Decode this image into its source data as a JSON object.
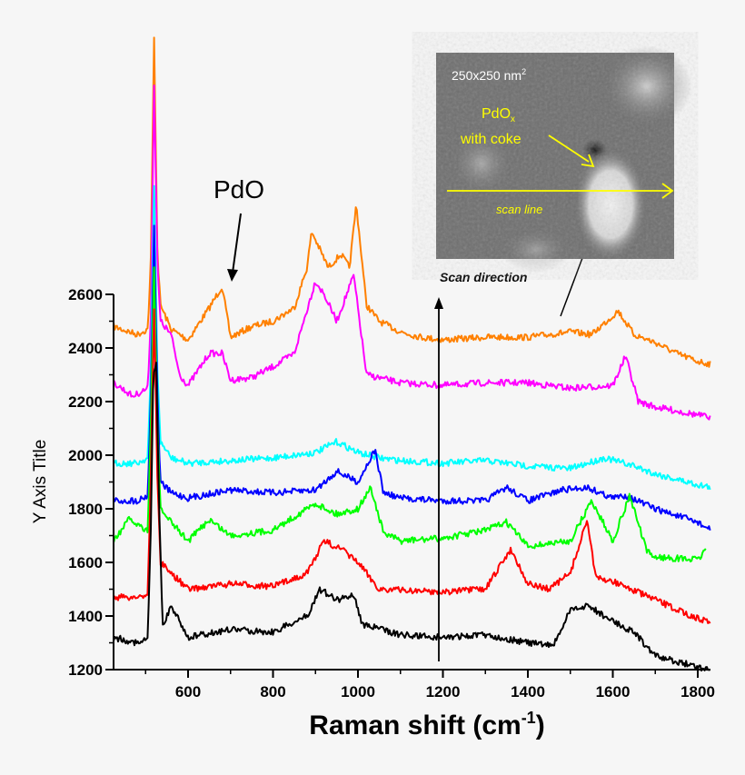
{
  "chart_data": {
    "type": "line",
    "title": "",
    "xlabel": "Raman shift (cm",
    "xlabel_sup": "-1",
    "xlabel_close": ")",
    "ylabel": "Y Axis Title",
    "xlim": [
      425,
      1830
    ],
    "ylim": [
      1200,
      2600
    ],
    "xticks": [
      600,
      800,
      1000,
      1200,
      1400,
      1600,
      1800
    ],
    "yticks": [
      1200,
      1400,
      1600,
      1800,
      2000,
      2200,
      2400,
      2600
    ],
    "xtick_labels": [
      "600",
      "800",
      "1000",
      "1200",
      "1400",
      "1600",
      "1800"
    ],
    "ytick_labels": [
      "1200",
      "1400",
      "1600",
      "1800",
      "2000",
      "2200",
      "2400",
      "2600"
    ],
    "grid": false,
    "series": [
      {
        "color": "#ff8000",
        "x": [
          425,
          480,
          505,
          512,
          520,
          528,
          535,
          560,
          600,
          650,
          680,
          700,
          750,
          800,
          850,
          880,
          891,
          930,
          960,
          980,
          996,
          1020,
          1050,
          1100,
          1150,
          1200,
          1300,
          1400,
          1500,
          1550,
          1600,
          1612,
          1650,
          1700,
          1750,
          1800,
          1830
        ],
        "y": [
          2480,
          2450,
          2470,
          2700,
          3556,
          2750,
          2560,
          2470,
          2430,
          2550,
          2630,
          2440,
          2480,
          2500,
          2550,
          2700,
          2834,
          2700,
          2750,
          2700,
          2936,
          2560,
          2500,
          2460,
          2440,
          2430,
          2440,
          2440,
          2460,
          2450,
          2520,
          2539,
          2450,
          2420,
          2380,
          2350,
          2340
        ]
      },
      {
        "color": "#ff00ff",
        "x": [
          425,
          470,
          505,
          512,
          520,
          528,
          535,
          560,
          580,
          600,
          650,
          680,
          700,
          750,
          800,
          850,
          900,
          920,
          950,
          990,
          1020,
          1100,
          1200,
          1300,
          1400,
          1500,
          1600,
          1630,
          1660,
          1700,
          1800,
          1830
        ],
        "y": [
          2270,
          2220,
          2250,
          2500,
          3393,
          2700,
          2500,
          2450,
          2300,
          2260,
          2380,
          2380,
          2280,
          2290,
          2330,
          2380,
          2650,
          2600,
          2500,
          2671,
          2300,
          2270,
          2260,
          2270,
          2270,
          2250,
          2260,
          2370,
          2200,
          2180,
          2150,
          2140
        ]
      },
      {
        "color": "#00ffff",
        "x": [
          425,
          480,
          505,
          512,
          520,
          528,
          535,
          560,
          600,
          700,
          800,
          900,
          950,
          1000,
          1050,
          1100,
          1200,
          1300,
          1400,
          1500,
          1580,
          1650,
          1700,
          1800,
          1830
        ],
        "y": [
          1970,
          1970,
          1990,
          2300,
          3004,
          2300,
          2050,
          1990,
          1970,
          1980,
          1990,
          2010,
          2050,
          2010,
          1990,
          1980,
          1970,
          1980,
          1960,
          1950,
          1990,
          1960,
          1930,
          1890,
          1880
        ]
      },
      {
        "color": "#0000ff",
        "x": [
          425,
          480,
          505,
          512,
          520,
          528,
          535,
          560,
          600,
          700,
          800,
          900,
          950,
          1000,
          1040,
          1060,
          1100,
          1200,
          1300,
          1350,
          1400,
          1480,
          1540,
          1600,
          1630,
          1700,
          1800,
          1830
        ],
        "y": [
          1830,
          1830,
          1850,
          2200,
          2858,
          2200,
          1900,
          1860,
          1840,
          1870,
          1860,
          1870,
          1940,
          1900,
          2020,
          1860,
          1840,
          1830,
          1830,
          1880,
          1830,
          1870,
          1880,
          1840,
          1850,
          1800,
          1750,
          1720
        ]
      },
      {
        "color": "#00ff00",
        "x": [
          425,
          460,
          505,
          512,
          520,
          528,
          535,
          560,
          600,
          650,
          700,
          800,
          900,
          950,
          1000,
          1030,
          1060,
          1100,
          1200,
          1300,
          1350,
          1400,
          1500,
          1550,
          1600,
          1640,
          1680,
          1700,
          1800,
          1820
        ],
        "y": [
          1680,
          1760,
          1720,
          2100,
          2715,
          2100,
          1800,
          1750,
          1680,
          1760,
          1700,
          1720,
          1820,
          1780,
          1800,
          1880,
          1710,
          1680,
          1690,
          1720,
          1750,
          1660,
          1680,
          1830,
          1680,
          1850,
          1640,
          1620,
          1610,
          1650
        ]
      },
      {
        "color": "#ff0000",
        "x": [
          425,
          480,
          505,
          512,
          520,
          528,
          535,
          560,
          600,
          700,
          800,
          880,
          920,
          960,
          1000,
          1050,
          1200,
          1300,
          1360,
          1400,
          1450,
          1500,
          1540,
          1560,
          1600,
          1700,
          1800,
          1830
        ],
        "y": [
          1470,
          1470,
          1480,
          1900,
          2546,
          1900,
          1600,
          1560,
          1500,
          1520,
          1510,
          1560,
          1680,
          1650,
          1600,
          1500,
          1490,
          1500,
          1650,
          1520,
          1500,
          1560,
          1760,
          1540,
          1530,
          1460,
          1390,
          1380
        ]
      },
      {
        "color": "#000000",
        "x": [
          425,
          480,
          505,
          512,
          518,
          525,
          532,
          540,
          560,
          600,
          700,
          800,
          880,
          910,
          950,
          990,
          1010,
          1100,
          1200,
          1300,
          1400,
          1460,
          1500,
          1540,
          1600,
          1650,
          1700,
          1800,
          1830
        ],
        "y": [
          1320,
          1300,
          1310,
          1700,
          2300,
          2342,
          1800,
          1360,
          1440,
          1320,
          1350,
          1340,
          1400,
          1500,
          1460,
          1480,
          1370,
          1330,
          1320,
          1330,
          1300,
          1290,
          1420,
          1440,
          1380,
          1340,
          1250,
          1210,
          1200
        ]
      }
    ]
  },
  "annotations": {
    "pdo_label": "PdO",
    "scan_direction": "Scan direction",
    "inset_scale": "250x250 nm",
    "inset_scale_sup": "2",
    "inset_pdox": "PdO",
    "inset_pdox_sub": "x",
    "inset_coke": "with coke",
    "inset_scan_line": "scan line"
  }
}
